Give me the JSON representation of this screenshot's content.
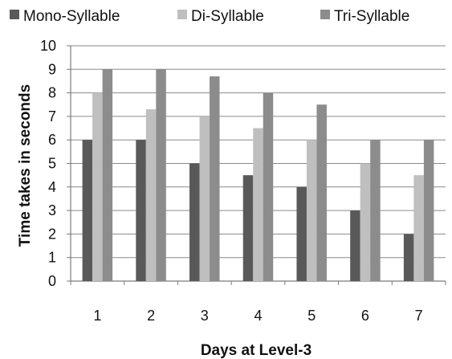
{
  "chart_data": {
    "type": "bar",
    "title": "",
    "xlabel": "Days at Level-3",
    "ylabel": "Time takes in seconds",
    "categories": [
      "1",
      "2",
      "3",
      "4",
      "5",
      "6",
      "7"
    ],
    "series": [
      {
        "name": "Mono-Syllable",
        "color": "#595959",
        "values": [
          6,
          6,
          5,
          4.5,
          4,
          3,
          2
        ]
      },
      {
        "name": "Di-Syllable",
        "color": "#bfbfbf",
        "values": [
          8,
          7.3,
          7,
          6.5,
          6,
          5,
          4.5
        ]
      },
      {
        "name": "Tri-Syllable",
        "color": "#8c8c8c",
        "values": [
          9,
          9,
          8.7,
          8,
          7.5,
          6,
          6
        ]
      }
    ],
    "ylim": [
      0,
      10
    ],
    "y_ticks": [
      "0",
      "1",
      "2",
      "3",
      "4",
      "5",
      "6",
      "7",
      "8",
      "9",
      "10"
    ],
    "grid": true,
    "legend": "top"
  }
}
